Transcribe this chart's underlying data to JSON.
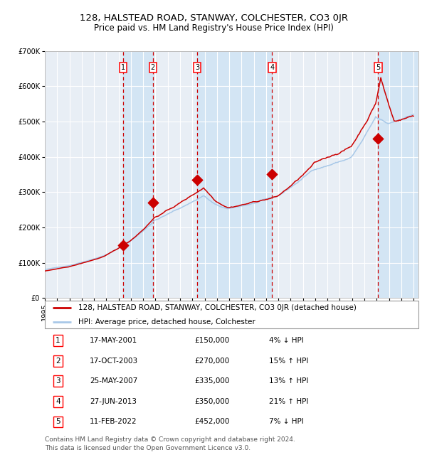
{
  "title": "128, HALSTEAD ROAD, STANWAY, COLCHESTER, CO3 0JR",
  "subtitle": "Price paid vs. HM Land Registry's House Price Index (HPI)",
  "x_start_year": 1995,
  "x_end_year": 2025,
  "y_min": 0,
  "y_max": 700000,
  "y_ticks": [
    0,
    100000,
    200000,
    300000,
    400000,
    500000,
    600000,
    700000
  ],
  "y_tick_labels": [
    "£0",
    "£100K",
    "£200K",
    "£300K",
    "£400K",
    "£500K",
    "£600K",
    "£700K"
  ],
  "background_color": "#ffffff",
  "plot_bg_color": "#e8eef5",
  "grid_color": "#ffffff",
  "hpi_line_color": "#a8c8e8",
  "price_line_color": "#cc0000",
  "sale_marker_color": "#cc0000",
  "dashed_line_color": "#cc0000",
  "shade_color": "#d0e4f4",
  "transactions": [
    {
      "num": 1,
      "date": "17-MAY-2001",
      "price": 150000,
      "year": 2001.38,
      "hpi_pct": "4%",
      "hpi_dir": "↓"
    },
    {
      "num": 2,
      "date": "17-OCT-2003",
      "price": 270000,
      "year": 2003.79,
      "hpi_pct": "15%",
      "hpi_dir": "↑"
    },
    {
      "num": 3,
      "date": "25-MAY-2007",
      "price": 335000,
      "year": 2007.4,
      "hpi_pct": "13%",
      "hpi_dir": "↑"
    },
    {
      "num": 4,
      "date": "27-JUN-2013",
      "price": 350000,
      "year": 2013.49,
      "hpi_pct": "21%",
      "hpi_dir": "↑"
    },
    {
      "num": 5,
      "date": "11-FEB-2022",
      "price": 452000,
      "year": 2022.12,
      "hpi_pct": "7%",
      "hpi_dir": "↓"
    }
  ],
  "legend_label_price": "128, HALSTEAD ROAD, STANWAY, COLCHESTER, CO3 0JR (detached house)",
  "legend_label_hpi": "HPI: Average price, detached house, Colchester",
  "footer": "Contains HM Land Registry data © Crown copyright and database right 2024.\nThis data is licensed under the Open Government Licence v3.0.",
  "title_fontsize": 9.5,
  "subtitle_fontsize": 8.5,
  "tick_fontsize": 7,
  "legend_fontsize": 7.5,
  "table_fontsize": 7.5,
  "footer_fontsize": 6.5
}
